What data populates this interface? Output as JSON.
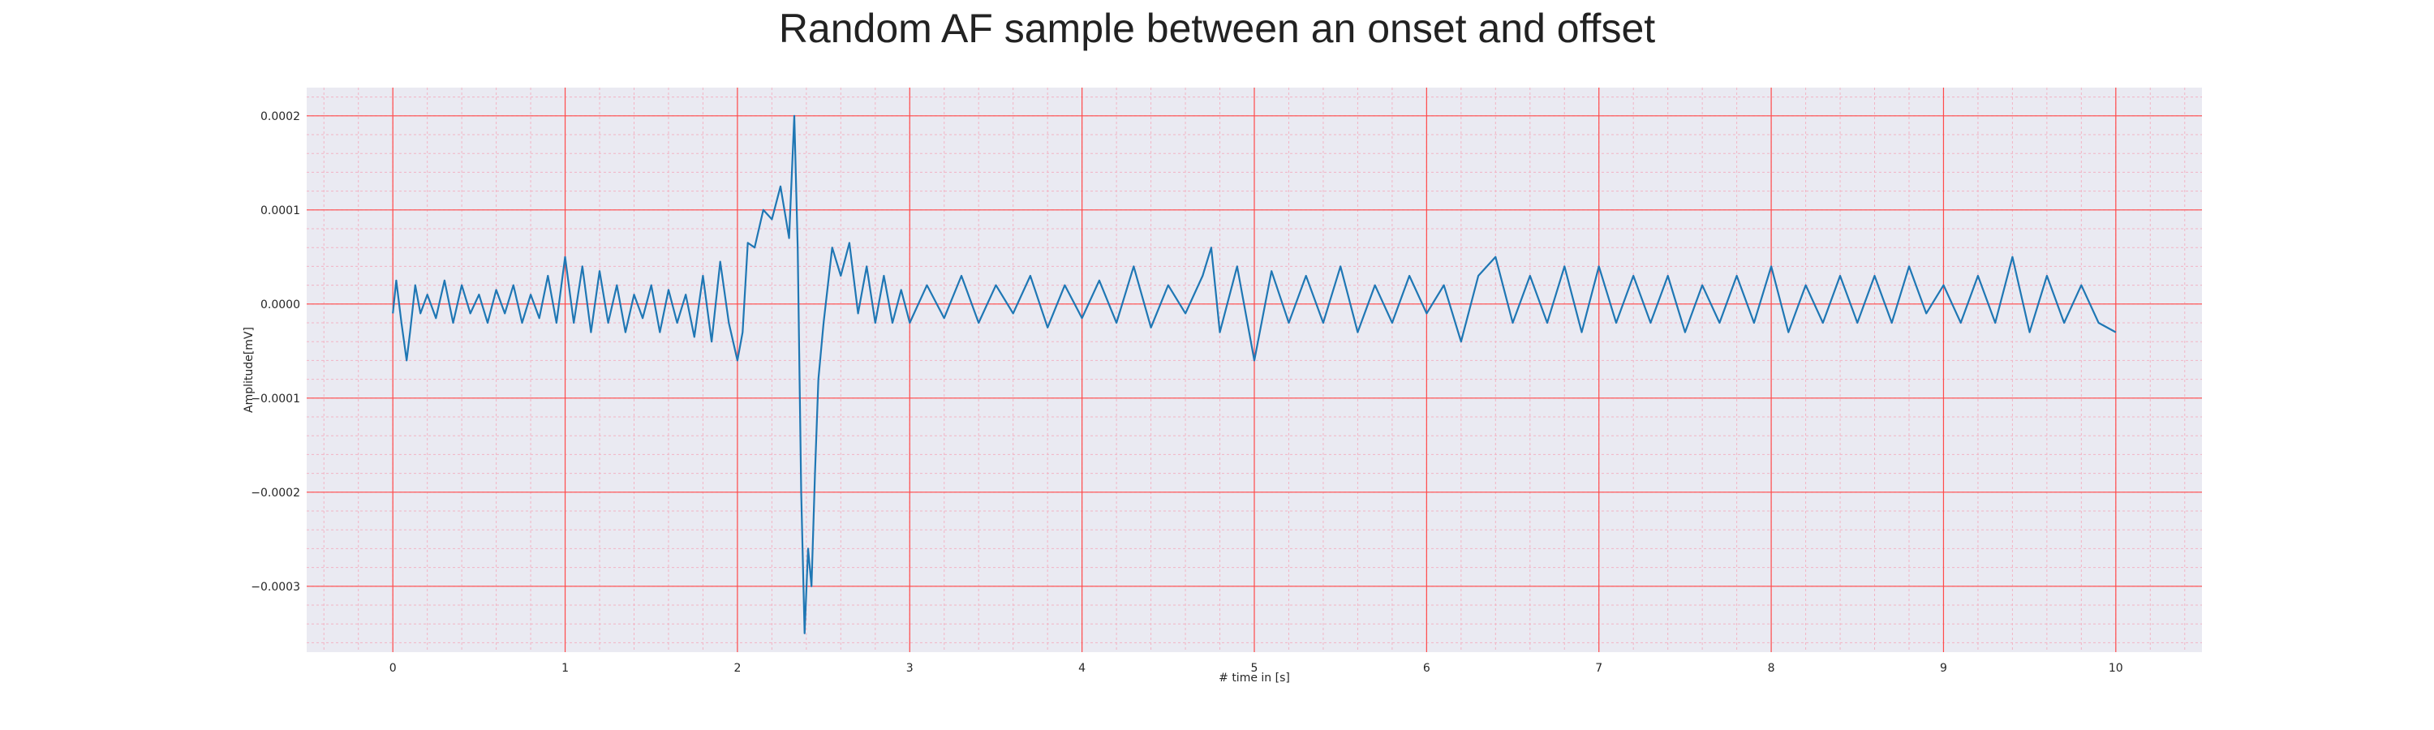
{
  "chart_data": {
    "type": "line",
    "title": "Random AF sample between an onset and offset",
    "xlabel": "# time in [s]",
    "ylabel": "Amplitude[mV]",
    "xlim": [
      -0.5,
      10.5
    ],
    "ylim": [
      -0.00037,
      0.00023
    ],
    "xticks": [
      0,
      1,
      2,
      3,
      4,
      5,
      6,
      7,
      8,
      9,
      10
    ],
    "xtick_labels": [
      "0",
      "1",
      "2",
      "3",
      "4",
      "5",
      "6",
      "7",
      "8",
      "9",
      "10"
    ],
    "yticks": [
      0.0002,
      0.0001,
      0.0,
      -0.0001,
      -0.0002,
      -0.0003
    ],
    "ytick_labels": [
      "0.0002",
      "0.0001",
      "0.0000",
      "−0.0001",
      "−0.0002",
      "−0.0003"
    ],
    "grid": true,
    "minor_grid": true,
    "series": [
      {
        "color": "#1f77b4",
        "x": [
          0.0,
          0.02,
          0.05,
          0.08,
          0.1,
          0.13,
          0.16,
          0.2,
          0.25,
          0.3,
          0.35,
          0.4,
          0.45,
          0.5,
          0.55,
          0.6,
          0.65,
          0.7,
          0.75,
          0.8,
          0.85,
          0.9,
          0.95,
          1.0,
          1.05,
          1.1,
          1.15,
          1.2,
          1.25,
          1.3,
          1.35,
          1.4,
          1.45,
          1.5,
          1.55,
          1.6,
          1.65,
          1.7,
          1.75,
          1.8,
          1.85,
          1.9,
          1.95,
          2.0,
          2.03,
          2.06,
          2.1,
          2.15,
          2.2,
          2.25,
          2.3,
          2.33,
          2.35,
          2.37,
          2.39,
          2.41,
          2.43,
          2.45,
          2.47,
          2.5,
          2.55,
          2.6,
          2.65,
          2.7,
          2.75,
          2.8,
          2.85,
          2.9,
          2.95,
          3.0,
          3.1,
          3.2,
          3.3,
          3.4,
          3.5,
          3.6,
          3.7,
          3.8,
          3.9,
          4.0,
          4.1,
          4.2,
          4.3,
          4.4,
          4.5,
          4.6,
          4.7,
          4.75,
          4.8,
          4.9,
          5.0,
          5.1,
          5.2,
          5.3,
          5.4,
          5.5,
          5.6,
          5.7,
          5.8,
          5.9,
          6.0,
          6.1,
          6.2,
          6.3,
          6.4,
          6.5,
          6.6,
          6.7,
          6.8,
          6.9,
          7.0,
          7.1,
          7.2,
          7.3,
          7.4,
          7.5,
          7.6,
          7.7,
          7.8,
          7.9,
          8.0,
          8.1,
          8.2,
          8.3,
          8.4,
          8.5,
          8.6,
          8.7,
          8.8,
          8.9,
          9.0,
          9.1,
          9.2,
          9.3,
          9.4,
          9.5,
          9.6,
          9.7,
          9.8,
          9.9,
          10.0
        ],
        "y": [
          -1e-05,
          2.5e-05,
          -2e-05,
          -6e-05,
          -3e-05,
          2e-05,
          -1e-05,
          1e-05,
          -1.5e-05,
          2.5e-05,
          -2e-05,
          2e-05,
          -1e-05,
          1e-05,
          -2e-05,
          1.5e-05,
          -1e-05,
          2e-05,
          -2e-05,
          1e-05,
          -1.5e-05,
          3e-05,
          -2e-05,
          5e-05,
          -2e-05,
          4e-05,
          -3e-05,
          3.5e-05,
          -2e-05,
          2e-05,
          -3e-05,
          1e-05,
          -1.5e-05,
          2e-05,
          -3e-05,
          1.5e-05,
          -2e-05,
          1e-05,
          -3.5e-05,
          3e-05,
          -4e-05,
          4.5e-05,
          -2e-05,
          -6e-05,
          -3e-05,
          6.5e-05,
          6e-05,
          0.0001,
          9e-05,
          0.000125,
          7e-05,
          0.0002,
          6e-05,
          -0.0002,
          -0.00035,
          -0.00026,
          -0.0003,
          -0.00018,
          -8e-05,
          -2e-05,
          6e-05,
          3e-05,
          6.5e-05,
          -1e-05,
          4e-05,
          -2e-05,
          3e-05,
          -2e-05,
          1.5e-05,
          -2e-05,
          2e-05,
          -1.5e-05,
          3e-05,
          -2e-05,
          2e-05,
          -1e-05,
          3e-05,
          -2.5e-05,
          2e-05,
          -1.5e-05,
          2.5e-05,
          -2e-05,
          4e-05,
          -2.5e-05,
          2e-05,
          -1e-05,
          3e-05,
          6e-05,
          -3e-05,
          4e-05,
          -6e-05,
          3.5e-05,
          -2e-05,
          3e-05,
          -2e-05,
          4e-05,
          -3e-05,
          2e-05,
          -2e-05,
          3e-05,
          -1e-05,
          2e-05,
          -4e-05,
          3e-05,
          5e-05,
          -2e-05,
          3e-05,
          -2e-05,
          4e-05,
          -3e-05,
          4e-05,
          -2e-05,
          3e-05,
          -2e-05,
          3e-05,
          -3e-05,
          2e-05,
          -2e-05,
          3e-05,
          -2e-05,
          4e-05,
          -3e-05,
          2e-05,
          -2e-05,
          3e-05,
          -2e-05,
          3e-05,
          -2e-05,
          4e-05,
          -1e-05,
          2e-05,
          -2e-05,
          3e-05,
          -2e-05,
          5e-05,
          -3e-05,
          3e-05,
          -2e-05,
          2e-05,
          -2e-05,
          -3e-05
        ]
      }
    ]
  }
}
